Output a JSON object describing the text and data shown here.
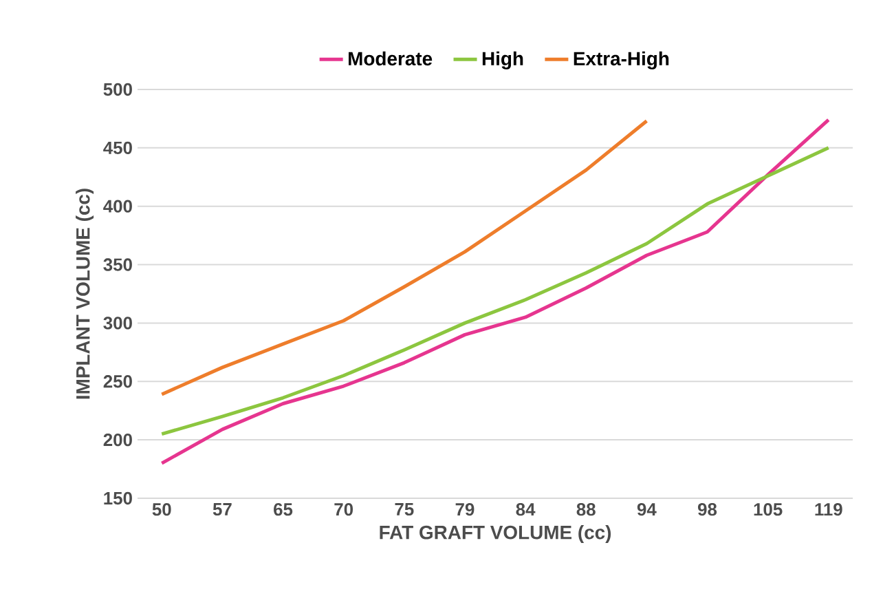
{
  "chart_data": {
    "type": "line",
    "xlabel": "FAT GRAFT VOLUME (cc)",
    "ylabel": "IMPLANT VOLUME (cc)",
    "categories": [
      "50",
      "57",
      "65",
      "70",
      "75",
      "79",
      "84",
      "88",
      "94",
      "98",
      "105",
      "119"
    ],
    "series": [
      {
        "name": "Moderate",
        "color": "#e6358f",
        "values": [
          180,
          209,
          231,
          246,
          266,
          290,
          305,
          330,
          358,
          378,
          427,
          474
        ]
      },
      {
        "name": "High",
        "color": "#8cc63f",
        "values": [
          205,
          220,
          236,
          255,
          277,
          300,
          320,
          343,
          368,
          402,
          426,
          450
        ]
      },
      {
        "name": "Extra-High",
        "color": "#ee7d2b",
        "values": [
          239,
          262,
          282,
          302,
          331,
          361,
          396,
          431,
          473,
          null,
          null,
          null
        ]
      }
    ],
    "ylim": [
      150,
      500
    ],
    "yticks": [
      150,
      200,
      250,
      300,
      350,
      400,
      450,
      500
    ],
    "grid": "y",
    "legend": "top",
    "marker": "none",
    "line_style": "solid"
  }
}
